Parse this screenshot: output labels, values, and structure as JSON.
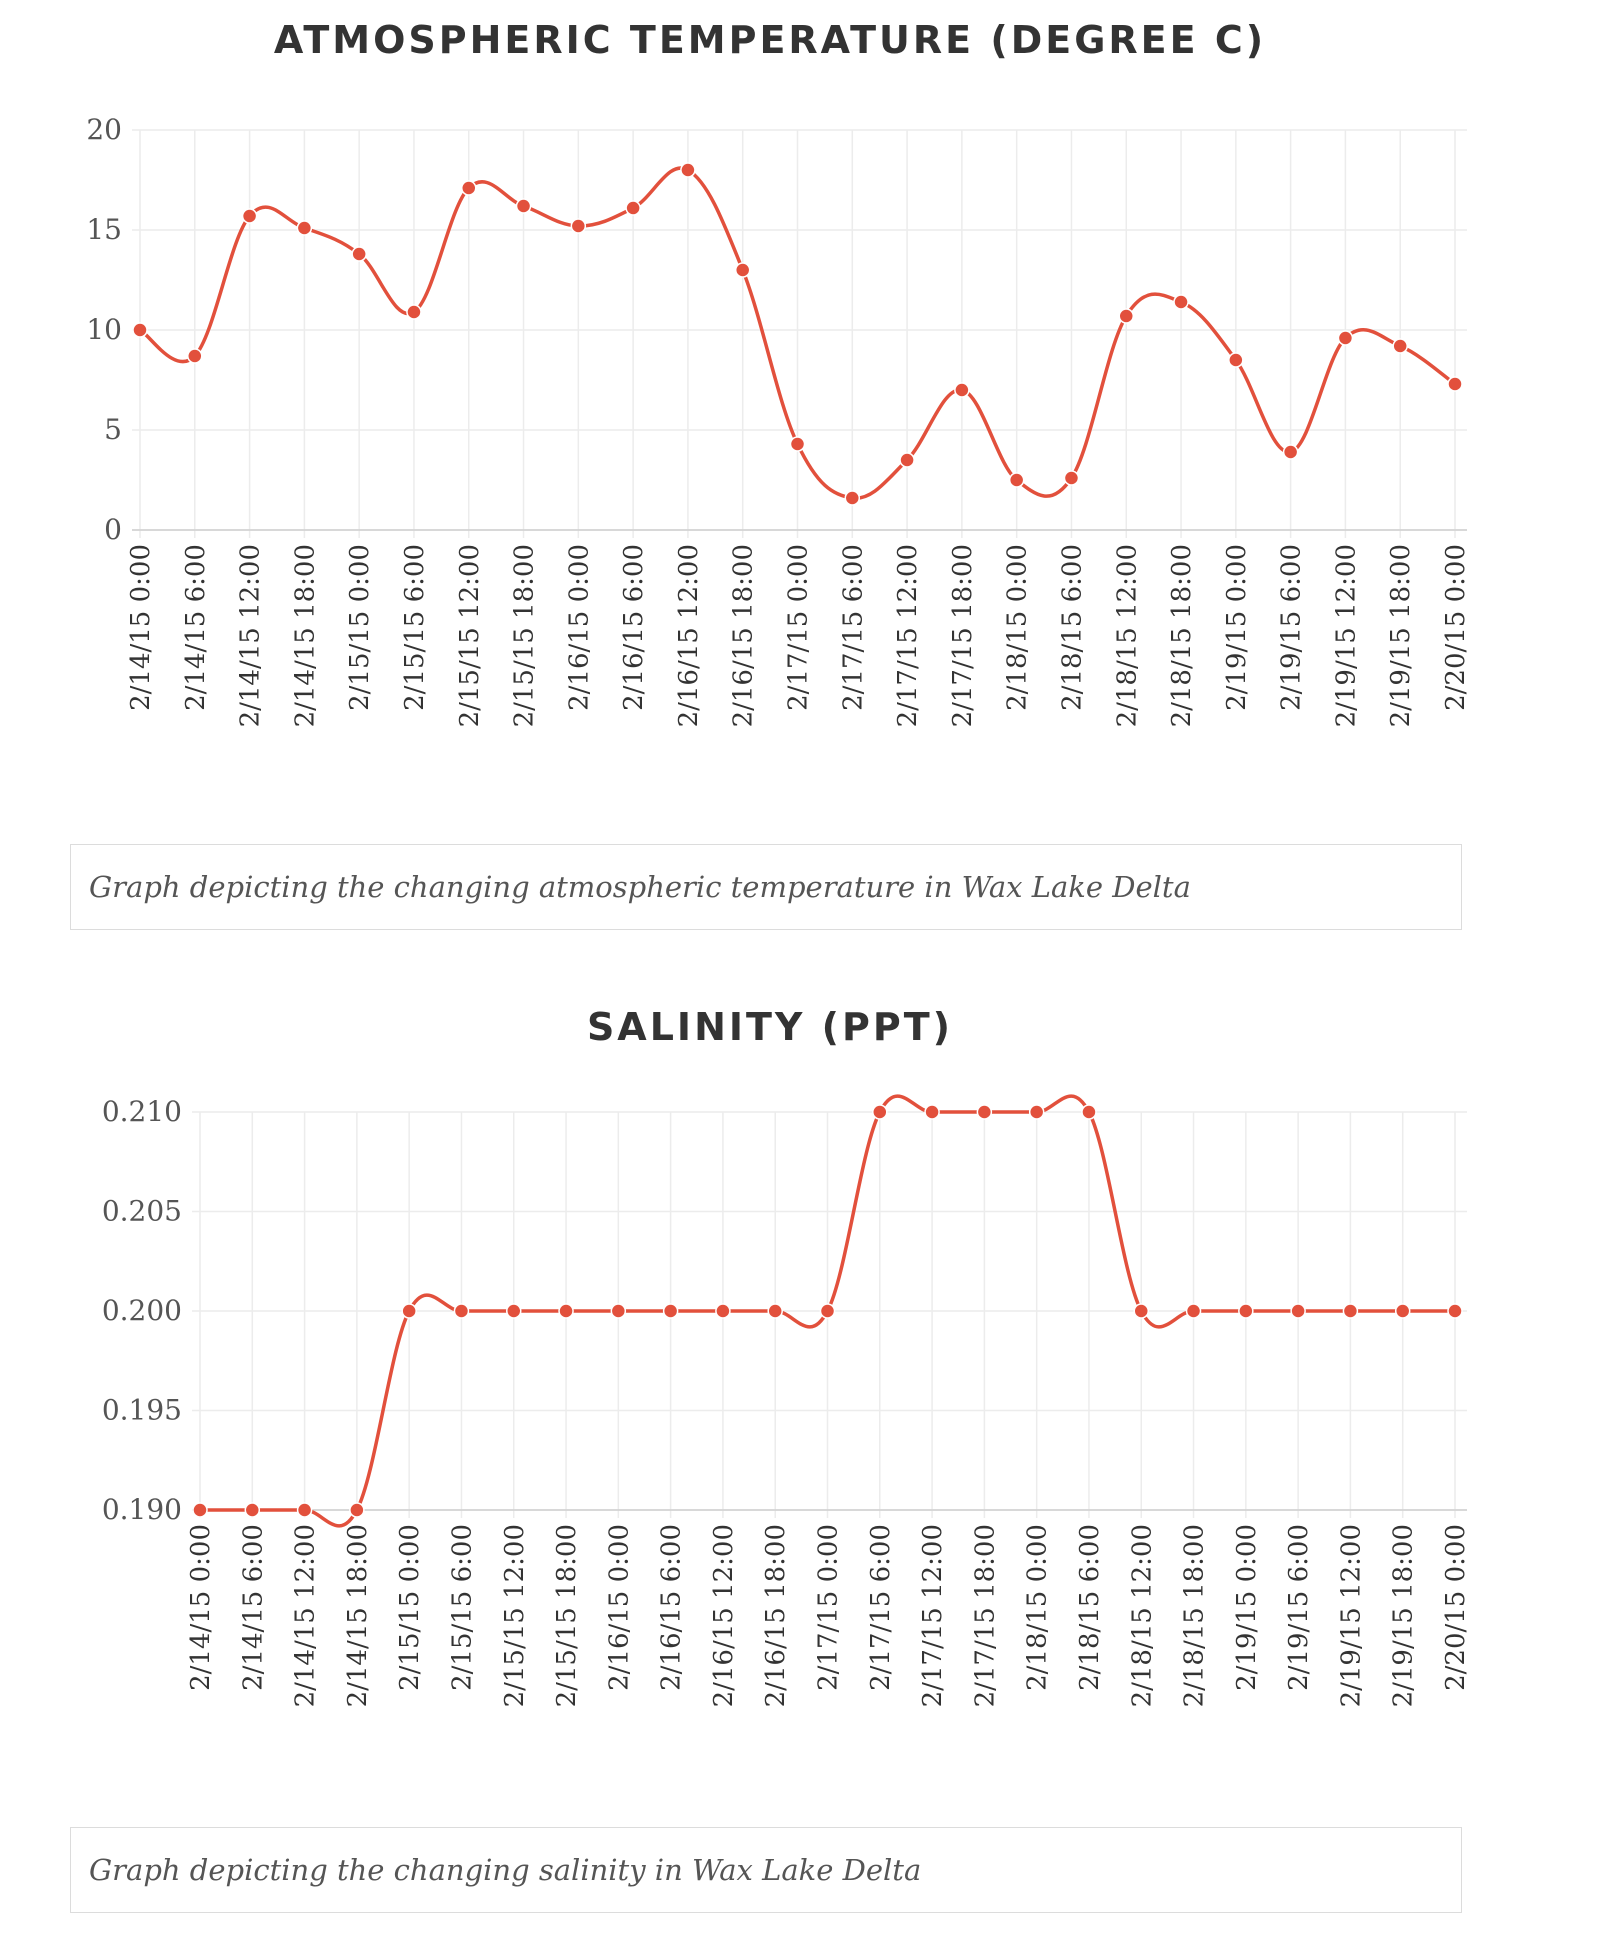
{
  "chart_data": [
    {
      "type": "line",
      "title": "ATMOSPHERIC TEMPERATURE (DEGREE C)",
      "caption": "Graph depicting the changing atmospheric temperature in Wax Lake Delta",
      "xlabel": "",
      "ylabel": "",
      "ylim": [
        0,
        20
      ],
      "yticks": [
        "0",
        "5",
        "10",
        "15",
        "20"
      ],
      "grid": true,
      "smooth": true,
      "color": "#e2503c",
      "categories": [
        "2/14/15 0:00",
        "2/14/15 6:00",
        "2/14/15 12:00",
        "2/14/15 18:00",
        "2/15/15 0:00",
        "2/15/15 6:00",
        "2/15/15 12:00",
        "2/15/15 18:00",
        "2/16/15 0:00",
        "2/16/15 6:00",
        "2/16/15 12:00",
        "2/16/15 18:00",
        "2/17/15 0:00",
        "2/17/15 6:00",
        "2/17/15 12:00",
        "2/17/15 18:00",
        "2/18/15 0:00",
        "2/18/15 6:00",
        "2/18/15 12:00",
        "2/18/15 18:00",
        "2/19/15 0:00",
        "2/19/15 6:00",
        "2/19/15 12:00",
        "2/19/15 18:00",
        "2/20/15 0:00"
      ],
      "values": [
        10,
        8.7,
        15.7,
        15.1,
        13.8,
        10.9,
        17.1,
        16.2,
        15.2,
        16.1,
        18.0,
        13.0,
        4.3,
        1.6,
        3.5,
        7.0,
        2.5,
        2.6,
        10.7,
        11.4,
        8.5,
        3.9,
        9.6,
        9.2,
        7.3
      ]
    },
    {
      "type": "line",
      "title": "SALINITY (PPT)",
      "caption": "Graph depicting the changing salinity in Wax Lake Delta",
      "xlabel": "",
      "ylabel": "",
      "ylim": [
        0.19,
        0.21
      ],
      "yticks": [
        "0.190",
        "0.195",
        "0.200",
        "0.205",
        "0.210"
      ],
      "grid": true,
      "smooth": true,
      "color": "#e2503c",
      "categories": [
        "2/14/15 0:00",
        "2/14/15 6:00",
        "2/14/15 12:00",
        "2/14/15 18:00",
        "2/15/15 0:00",
        "2/15/15 6:00",
        "2/15/15 12:00",
        "2/15/15 18:00",
        "2/16/15 0:00",
        "2/16/15 6:00",
        "2/16/15 12:00",
        "2/16/15 18:00",
        "2/17/15 0:00",
        "2/17/15 6:00",
        "2/17/15 12:00",
        "2/17/15 18:00",
        "2/18/15 0:00",
        "2/18/15 6:00",
        "2/18/15 12:00",
        "2/18/15 18:00",
        "2/19/15 0:00",
        "2/19/15 6:00",
        "2/19/15 12:00",
        "2/19/15 18:00",
        "2/20/15 0:00"
      ],
      "values": [
        0.19,
        0.19,
        0.19,
        0.19,
        0.2,
        0.2,
        0.2,
        0.2,
        0.2,
        0.2,
        0.2,
        0.2,
        0.2,
        0.21,
        0.21,
        0.21,
        0.21,
        0.21,
        0.2,
        0.2,
        0.2,
        0.2,
        0.2,
        0.2,
        0.2
      ]
    }
  ]
}
